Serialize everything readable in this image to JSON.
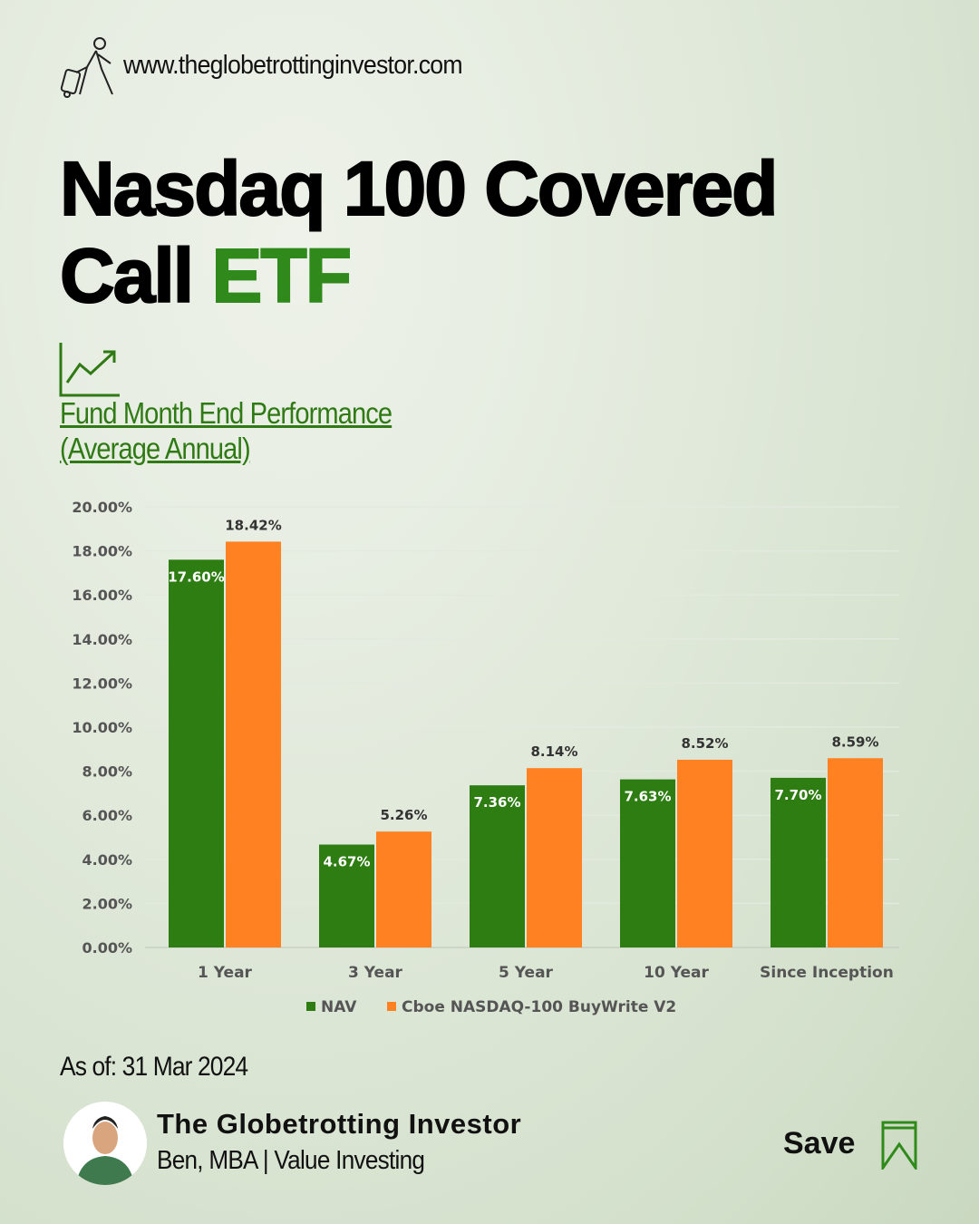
{
  "header": {
    "website": "www.theglobetrottinginvestor.com",
    "title_line1": "Nasdaq 100 Covered",
    "title_line2_black": "Call",
    "title_line2_green": "ETF"
  },
  "section": {
    "subtitle_line1": "Fund Month End Performance",
    "subtitle_line2": "(Average Annual)"
  },
  "chart_data": {
    "type": "bar",
    "categories": [
      "1 Year",
      "3 Year",
      "5 Year",
      "10 Year",
      "Since Inception"
    ],
    "series": [
      {
        "name": "NAV",
        "color": "#2e7d12",
        "values": [
          17.6,
          4.67,
          7.36,
          7.63,
          7.7
        ],
        "labels": [
          "17.60%",
          "4.67%",
          "7.36%",
          "7.63%",
          "7.70%"
        ]
      },
      {
        "name": "Cboe NASDAQ-100 BuyWrite V2",
        "color": "#ff8121",
        "values": [
          18.42,
          5.26,
          8.14,
          8.52,
          8.59
        ],
        "labels": [
          "18.42%",
          "5.26%",
          "8.14%",
          "8.52%",
          "8.59%"
        ]
      }
    ],
    "yticks": [
      "0.00%",
      "2.00%",
      "4.00%",
      "6.00%",
      "8.00%",
      "10.00%",
      "12.00%",
      "14.00%",
      "16.00%",
      "18.00%",
      "20.00%"
    ],
    "ylim": [
      0,
      20
    ],
    "grid": true,
    "legend": "bottom"
  },
  "footer": {
    "as_of": "As of: 31 Mar 2024",
    "author": "The Globetrotting Investor",
    "role": "Ben, MBA | Value Investing",
    "save_label": "Save"
  }
}
